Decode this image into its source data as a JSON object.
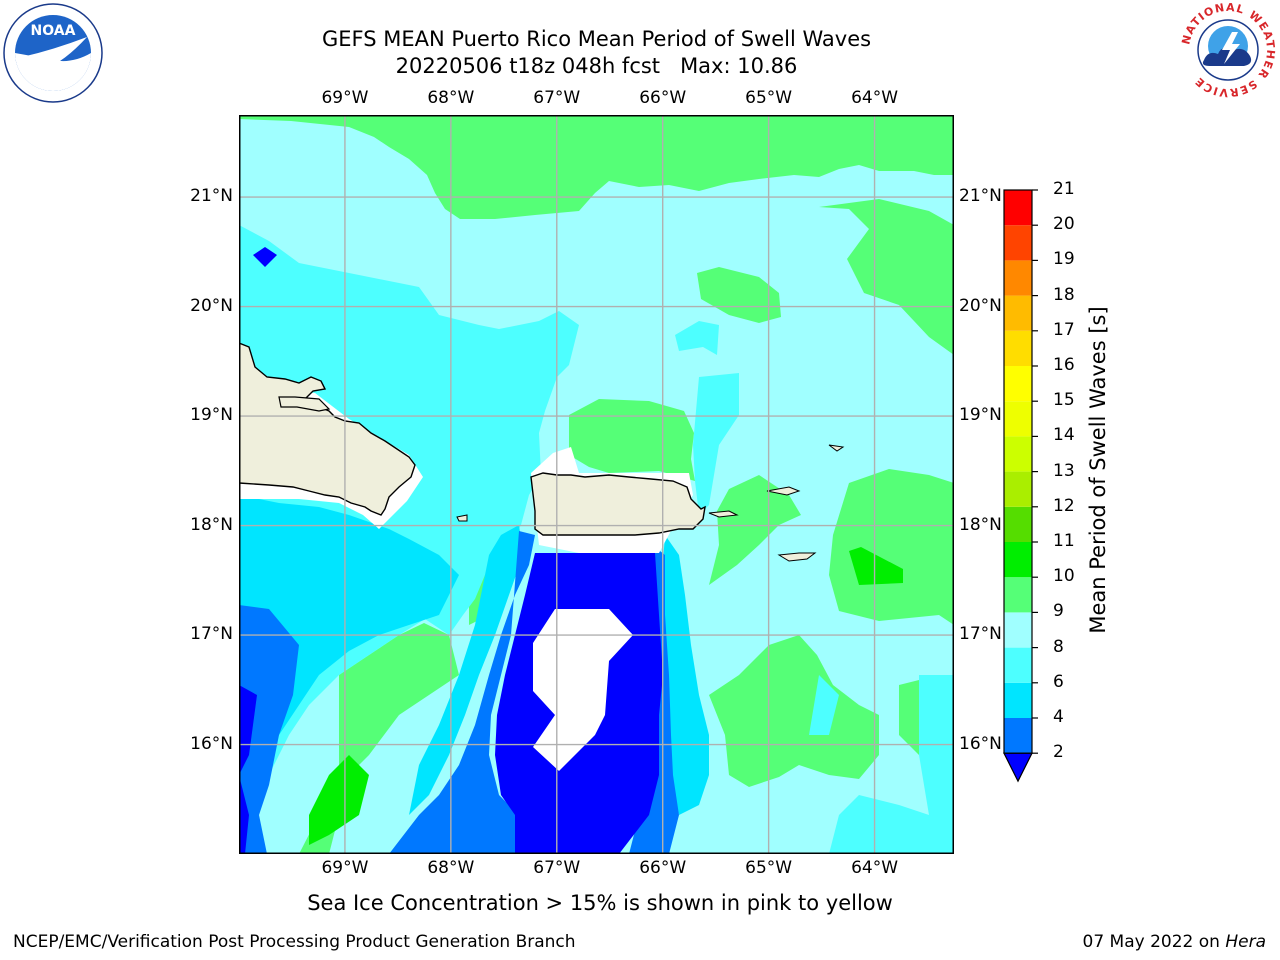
{
  "title": {
    "line1": "GEFS MEAN Puerto Rico Mean Period of Swell Waves",
    "line2": "20220506 t18z 048h fcst   Max: 10.86"
  },
  "logos": {
    "left": "noaa-logo",
    "right": "national-weather-service-logo",
    "left_text": "NOAA",
    "right_text": "NATIONAL WEATHER SERVICE"
  },
  "map": {
    "lon_labels": [
      "69°W",
      "68°W",
      "67°W",
      "66°W",
      "65°W",
      "64°W"
    ],
    "lat_labels": [
      "21°N",
      "20°N",
      "19°N",
      "18°N",
      "17°N",
      "16°N"
    ],
    "lon_range": [
      -70.0,
      -63.25
    ],
    "lat_range": [
      15.0,
      21.75
    ]
  },
  "colorbar": {
    "title": "Mean Period of Swell Waves [s]",
    "levels": [
      "2",
      "4",
      "6",
      "8",
      "9",
      "10",
      "11",
      "12",
      "13",
      "14",
      "15",
      "16",
      "17",
      "18",
      "19",
      "20",
      "21"
    ],
    "colors": [
      "#0000ff",
      "#0078ff",
      "#00e5ff",
      "#4dffff",
      "#a0ffff",
      "#55ff77",
      "#00ee00",
      "#55dd00",
      "#aaee00",
      "#ccff00",
      "#eeff00",
      "#ffff00",
      "#ffdd00",
      "#ffbb00",
      "#ff8800",
      "#ff4400",
      "#ff0000"
    ]
  },
  "note": "Sea Ice Concentration > 15% is shown in pink to yellow",
  "footer": {
    "left": "NCEP/EMC/Verification Post Processing Product Generation Branch",
    "right_date": "07 May 2022 on ",
    "right_host": "Hera"
  }
}
